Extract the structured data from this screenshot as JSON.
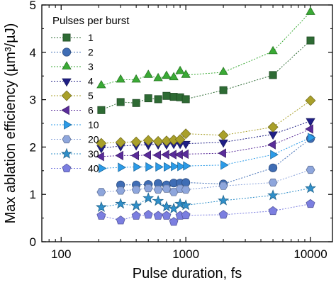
{
  "chart_data": {
    "type": "scatter",
    "title": "",
    "xlabel": "Pulse duration, fs",
    "ylabel": "Max ablation efficiency (µm³/µJ)",
    "xscale": "log",
    "xlim": [
      70,
      15000
    ],
    "ylim": [
      0,
      5
    ],
    "x_ticks": [
      100,
      1000,
      10000
    ],
    "x_tick_labels": [
      "100",
      "1000",
      "10000"
    ],
    "y_ticks": [
      0,
      1,
      2,
      3,
      4,
      5
    ],
    "y_tick_labels": [
      "0",
      "1",
      "2",
      "3",
      "4",
      "5"
    ],
    "legend_title": "Pulses per burst",
    "legend_position": "top-left",
    "line_style": "dotted",
    "series": [
      {
        "name": "1",
        "color": "#2e6b34",
        "marker": "square",
        "x": [
          210,
          300,
          400,
          500,
          600,
          700,
          800,
          900,
          1000,
          2000,
          5000,
          10000
        ],
        "y": [
          2.78,
          2.95,
          2.93,
          3.03,
          3.01,
          3.08,
          3.06,
          3.05,
          3.01,
          3.2,
          3.52,
          4.25
        ]
      },
      {
        "name": "2",
        "color": "#3f6db5",
        "marker": "circle",
        "x": [
          300,
          400,
          500,
          600,
          700,
          800,
          900,
          1000,
          2000,
          5000,
          10000
        ],
        "y": [
          1.2,
          1.2,
          1.21,
          1.23,
          1.2,
          1.24,
          1.24,
          1.25,
          1.22,
          1.56,
          2.18
        ]
      },
      {
        "name": "3",
        "color": "#3aaa35",
        "marker": "triangle-up",
        "x": [
          210,
          300,
          400,
          500,
          600,
          700,
          800,
          900,
          1000,
          2000,
          5000,
          10000
        ],
        "y": [
          3.3,
          3.42,
          3.42,
          3.52,
          3.45,
          3.5,
          3.47,
          3.6,
          3.52,
          3.58,
          4.02,
          4.85
        ]
      },
      {
        "name": "4",
        "color": "#1f1f86",
        "marker": "triangle-down",
        "x": [
          210,
          300,
          400,
          500,
          600,
          700,
          800,
          900,
          1000,
          2000,
          5000,
          10000
        ],
        "y": [
          1.98,
          2.02,
          2.04,
          2.05,
          2.06,
          2.06,
          2.07,
          2.07,
          2.07,
          2.1,
          2.27,
          2.55
        ]
      },
      {
        "name": "5",
        "color": "#a9a02a",
        "marker": "diamond",
        "x": [
          210,
          300,
          400,
          500,
          600,
          700,
          800,
          900,
          1000,
          2000,
          5000,
          10000
        ],
        "y": [
          2.08,
          2.1,
          2.11,
          2.14,
          2.12,
          2.13,
          2.15,
          2.16,
          2.28,
          2.25,
          2.42,
          2.98
        ]
      },
      {
        "name": "6",
        "color": "#5a2c9a",
        "marker": "triangle-left",
        "x": [
          210,
          300,
          400,
          500,
          600,
          700,
          800,
          900,
          1000,
          2000,
          5000,
          10000
        ],
        "y": [
          1.8,
          1.82,
          1.82,
          1.83,
          1.83,
          1.84,
          1.84,
          1.84,
          1.85,
          1.87,
          2.05,
          2.38
        ]
      },
      {
        "name": "10",
        "color": "#2b9be8",
        "marker": "triangle-right",
        "x": [
          210,
          300,
          400,
          500,
          600,
          700,
          800,
          900,
          1000,
          2000,
          5000,
          10000
        ],
        "y": [
          1.55,
          1.57,
          1.58,
          1.58,
          1.58,
          1.58,
          1.59,
          1.59,
          1.6,
          1.62,
          1.84,
          2.2
        ]
      },
      {
        "name": "20",
        "color": "#8ea6dc",
        "marker": "hexagon",
        "x": [
          210,
          300,
          400,
          500,
          600,
          700,
          800,
          900,
          1000,
          2000,
          5000,
          10000
        ],
        "y": [
          1.05,
          1.08,
          1.1,
          1.13,
          1.1,
          1.12,
          1.05,
          1.12,
          1.1,
          1.18,
          1.25,
          1.52
        ]
      },
      {
        "name": "30",
        "color": "#2f8fc9",
        "marker": "star",
        "x": [
          210,
          300,
          400,
          500,
          600,
          700,
          800,
          900,
          1000,
          2000,
          5000,
          10000
        ],
        "y": [
          0.73,
          0.8,
          0.76,
          0.92,
          0.86,
          0.74,
          0.7,
          0.8,
          0.77,
          0.87,
          0.98,
          1.13
        ]
      },
      {
        "name": "40",
        "color": "#7b7ee0",
        "marker": "pentagon",
        "x": [
          210,
          300,
          400,
          500,
          600,
          700,
          800,
          900,
          1000,
          2000,
          5000,
          10000
        ],
        "y": [
          0.55,
          0.45,
          0.55,
          0.57,
          0.55,
          0.55,
          0.42,
          0.55,
          0.56,
          0.57,
          0.65,
          0.8
        ]
      }
    ]
  }
}
